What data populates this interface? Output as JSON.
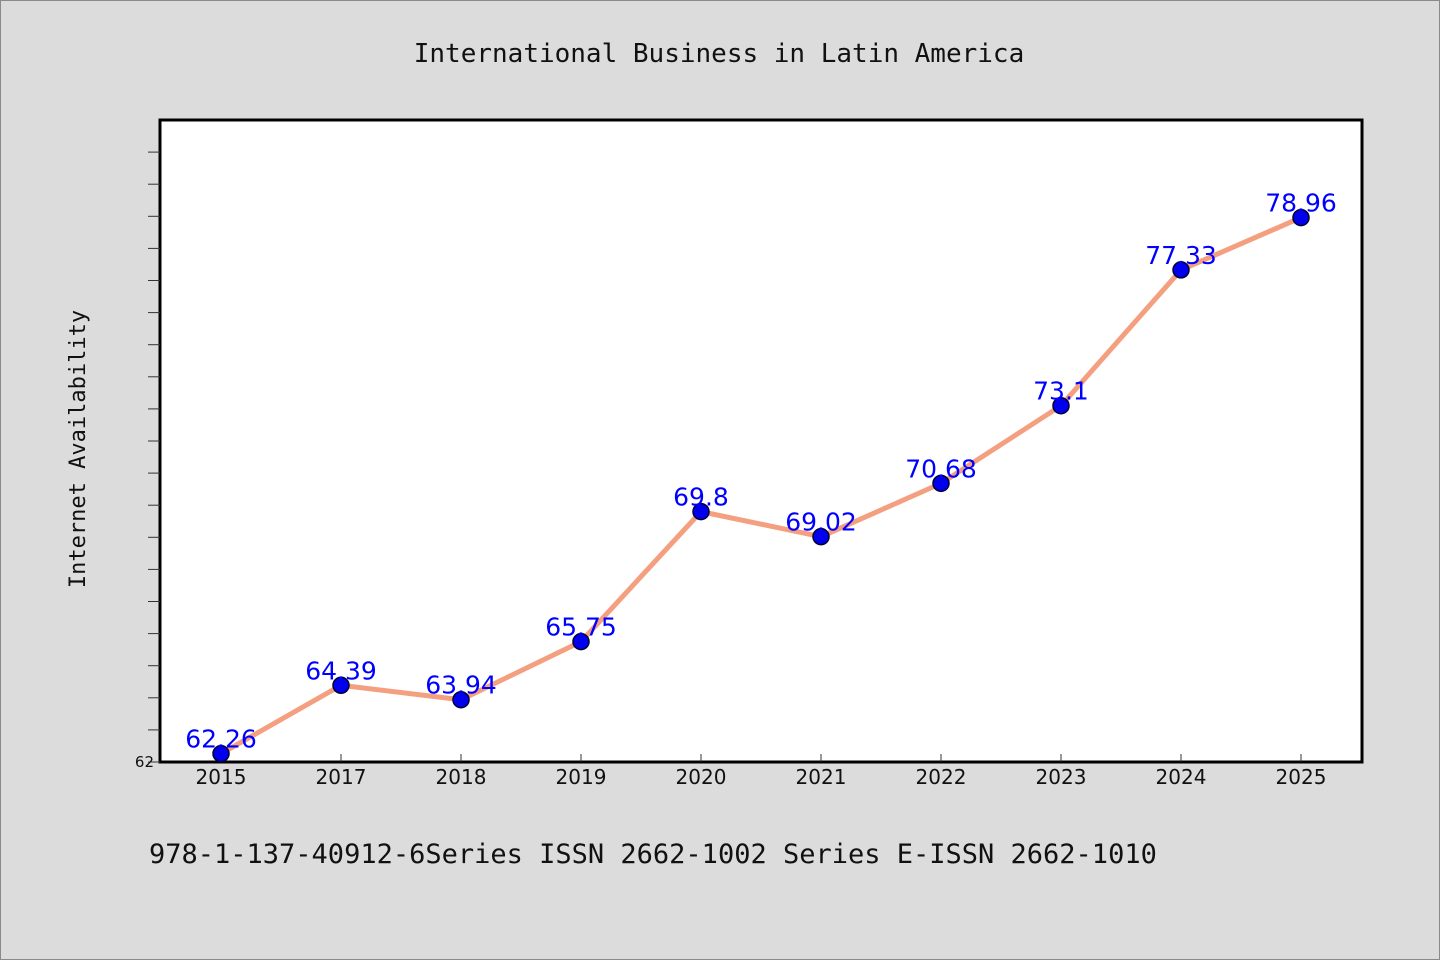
{
  "chart_data": {
    "type": "line",
    "title": "International Business in Latin America",
    "xlabel": "",
    "ylabel": "Internet Availability",
    "categories": [
      "2015",
      "2017",
      "2018",
      "2019",
      "2020",
      "2021",
      "2022",
      "2023",
      "2024",
      "2025"
    ],
    "series": [
      {
        "values": [
          62.26,
          64.39,
          63.94,
          65.75,
          69.8,
          69.02,
          70.68,
          73.1,
          77.33,
          78.96
        ],
        "data_labels": [
          "62.26",
          "64.39",
          "63.94",
          "65.75",
          "69.8",
          "69.02",
          "70.68",
          "73.1",
          "77.33",
          "78.96"
        ]
      }
    ],
    "ylim": [
      62,
      82
    ],
    "yticks_labeled": [
      "62"
    ],
    "grid": false,
    "legend": "none",
    "colors": {
      "line": "#f4a080",
      "marker": "#0000ee",
      "label": "#0000ff",
      "plot_background": "#ffffff",
      "page_background": "#dcdcdc"
    }
  },
  "footer": {
    "text": "978-1-137-40912-6Series ISSN 2662-1002 Series E-ISSN 2662-1010"
  }
}
